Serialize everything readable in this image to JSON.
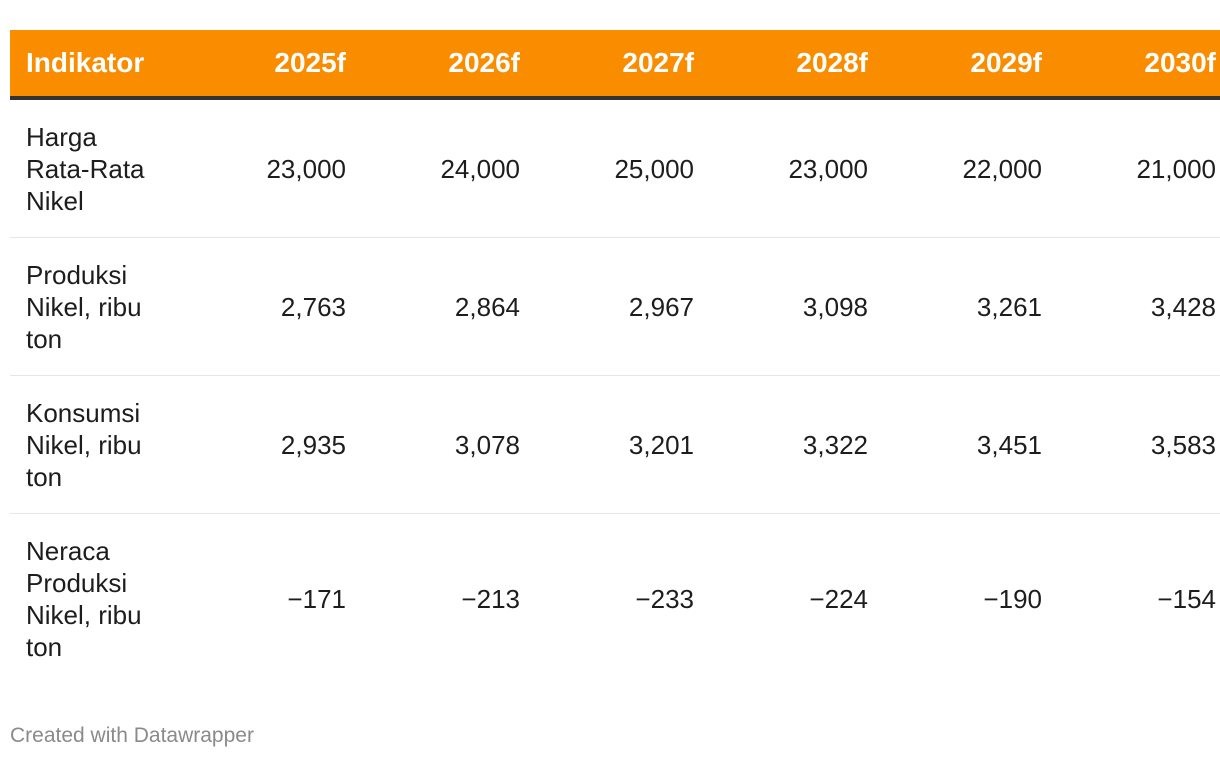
{
  "chart_data": {
    "type": "table",
    "header_color": "#fa8c00",
    "columns": [
      "Indikator",
      "2025f",
      "2026f",
      "2027f",
      "2028f",
      "2029f",
      "2030f"
    ],
    "rows": [
      {
        "label": "Harga\nRata-Rata\nNikel",
        "values": [
          "23,000",
          "24,000",
          "25,000",
          "23,000",
          "22,000",
          "21,000"
        ]
      },
      {
        "label": "Produksi\nNikel, ribu\nton",
        "values": [
          "2,763",
          "2,864",
          "2,967",
          "3,098",
          "3,261",
          "3,428"
        ]
      },
      {
        "label": "Konsumsi\nNikel, ribu\nton",
        "values": [
          "2,935",
          "3,078",
          "3,201",
          "3,322",
          "3,451",
          "3,583"
        ]
      },
      {
        "label": "Neraca\nProduksi\nNikel, ribu\nton",
        "values": [
          "−171",
          "−213",
          "−233",
          "−224",
          "−190",
          "−154"
        ]
      }
    ]
  },
  "footer": {
    "credit": "Created with Datawrapper"
  }
}
